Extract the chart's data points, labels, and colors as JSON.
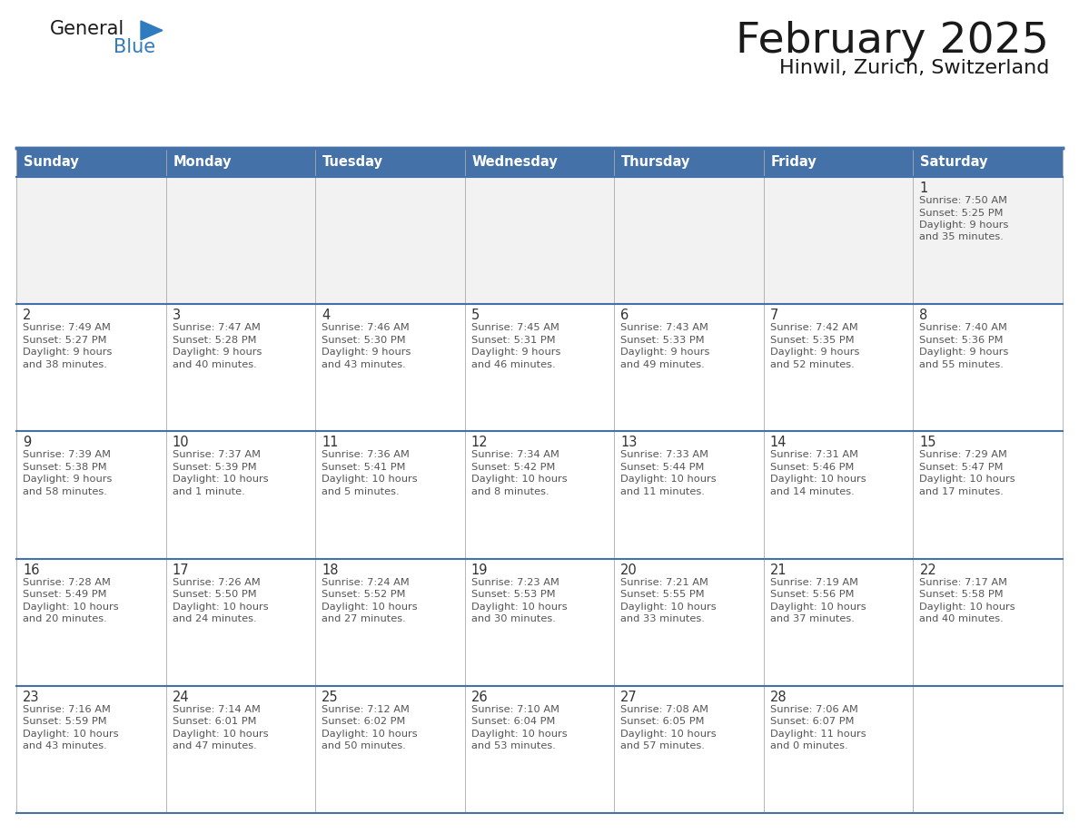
{
  "title": "February 2025",
  "subtitle": "Hinwil, Zurich, Switzerland",
  "header_bg": "#4472A8",
  "header_text": "#FFFFFF",
  "cell_bg": "#FFFFFF",
  "first_row_bg": "#F2F2F2",
  "border_color": "#4472A8",
  "row_divider_color": "#4472A8",
  "day_headers": [
    "Sunday",
    "Monday",
    "Tuesday",
    "Wednesday",
    "Thursday",
    "Friday",
    "Saturday"
  ],
  "cell_text_color": "#555555",
  "day_number_color": "#333333",
  "calendar_data": [
    [
      null,
      null,
      null,
      null,
      null,
      null,
      {
        "day": 1,
        "sunrise": "7:50 AM",
        "sunset": "5:25 PM",
        "daylight": "9 hours\nand 35 minutes."
      }
    ],
    [
      {
        "day": 2,
        "sunrise": "7:49 AM",
        "sunset": "5:27 PM",
        "daylight": "9 hours\nand 38 minutes."
      },
      {
        "day": 3,
        "sunrise": "7:47 AM",
        "sunset": "5:28 PM",
        "daylight": "9 hours\nand 40 minutes."
      },
      {
        "day": 4,
        "sunrise": "7:46 AM",
        "sunset": "5:30 PM",
        "daylight": "9 hours\nand 43 minutes."
      },
      {
        "day": 5,
        "sunrise": "7:45 AM",
        "sunset": "5:31 PM",
        "daylight": "9 hours\nand 46 minutes."
      },
      {
        "day": 6,
        "sunrise": "7:43 AM",
        "sunset": "5:33 PM",
        "daylight": "9 hours\nand 49 minutes."
      },
      {
        "day": 7,
        "sunrise": "7:42 AM",
        "sunset": "5:35 PM",
        "daylight": "9 hours\nand 52 minutes."
      },
      {
        "day": 8,
        "sunrise": "7:40 AM",
        "sunset": "5:36 PM",
        "daylight": "9 hours\nand 55 minutes."
      }
    ],
    [
      {
        "day": 9,
        "sunrise": "7:39 AM",
        "sunset": "5:38 PM",
        "daylight": "9 hours\nand 58 minutes."
      },
      {
        "day": 10,
        "sunrise": "7:37 AM",
        "sunset": "5:39 PM",
        "daylight": "10 hours\nand 1 minute."
      },
      {
        "day": 11,
        "sunrise": "7:36 AM",
        "sunset": "5:41 PM",
        "daylight": "10 hours\nand 5 minutes."
      },
      {
        "day": 12,
        "sunrise": "7:34 AM",
        "sunset": "5:42 PM",
        "daylight": "10 hours\nand 8 minutes."
      },
      {
        "day": 13,
        "sunrise": "7:33 AM",
        "sunset": "5:44 PM",
        "daylight": "10 hours\nand 11 minutes."
      },
      {
        "day": 14,
        "sunrise": "7:31 AM",
        "sunset": "5:46 PM",
        "daylight": "10 hours\nand 14 minutes."
      },
      {
        "day": 15,
        "sunrise": "7:29 AM",
        "sunset": "5:47 PM",
        "daylight": "10 hours\nand 17 minutes."
      }
    ],
    [
      {
        "day": 16,
        "sunrise": "7:28 AM",
        "sunset": "5:49 PM",
        "daylight": "10 hours\nand 20 minutes."
      },
      {
        "day": 17,
        "sunrise": "7:26 AM",
        "sunset": "5:50 PM",
        "daylight": "10 hours\nand 24 minutes."
      },
      {
        "day": 18,
        "sunrise": "7:24 AM",
        "sunset": "5:52 PM",
        "daylight": "10 hours\nand 27 minutes."
      },
      {
        "day": 19,
        "sunrise": "7:23 AM",
        "sunset": "5:53 PM",
        "daylight": "10 hours\nand 30 minutes."
      },
      {
        "day": 20,
        "sunrise": "7:21 AM",
        "sunset": "5:55 PM",
        "daylight": "10 hours\nand 33 minutes."
      },
      {
        "day": 21,
        "sunrise": "7:19 AM",
        "sunset": "5:56 PM",
        "daylight": "10 hours\nand 37 minutes."
      },
      {
        "day": 22,
        "sunrise": "7:17 AM",
        "sunset": "5:58 PM",
        "daylight": "10 hours\nand 40 minutes."
      }
    ],
    [
      {
        "day": 23,
        "sunrise": "7:16 AM",
        "sunset": "5:59 PM",
        "daylight": "10 hours\nand 43 minutes."
      },
      {
        "day": 24,
        "sunrise": "7:14 AM",
        "sunset": "6:01 PM",
        "daylight": "10 hours\nand 47 minutes."
      },
      {
        "day": 25,
        "sunrise": "7:12 AM",
        "sunset": "6:02 PM",
        "daylight": "10 hours\nand 50 minutes."
      },
      {
        "day": 26,
        "sunrise": "7:10 AM",
        "sunset": "6:04 PM",
        "daylight": "10 hours\nand 53 minutes."
      },
      {
        "day": 27,
        "sunrise": "7:08 AM",
        "sunset": "6:05 PM",
        "daylight": "10 hours\nand 57 minutes."
      },
      {
        "day": 28,
        "sunrise": "7:06 AM",
        "sunset": "6:07 PM",
        "daylight": "11 hours\nand 0 minutes."
      },
      null
    ]
  ],
  "logo_general_color": "#1a1a1a",
  "logo_blue_color": "#2E7BBF",
  "logo_triangle_color": "#2E7BBF",
  "title_color": "#1a1a1a",
  "subtitle_color": "#1a1a1a"
}
